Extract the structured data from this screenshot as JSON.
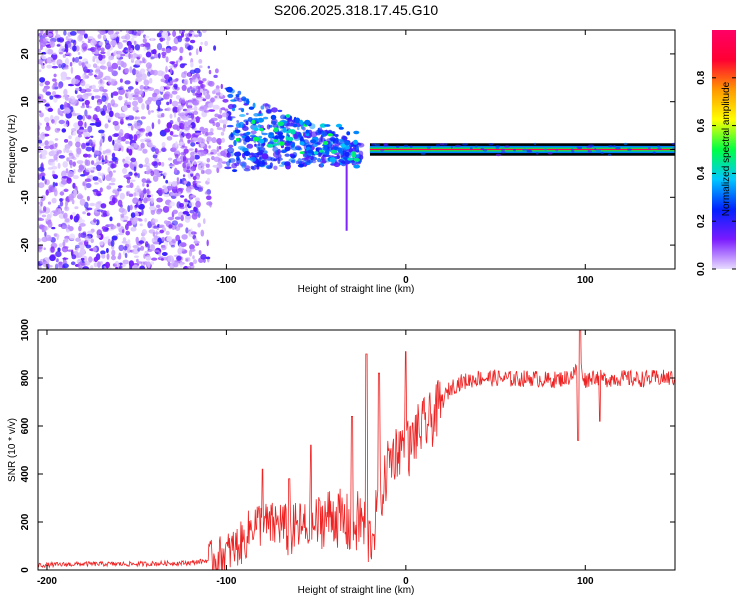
{
  "title": "S206.2025.318.17.45.G10",
  "chart_data": [
    {
      "type": "heatmap",
      "name": "spectrogram",
      "xlabel": "Height of straight line (km)",
      "ylabel": "Frequency (Hz)",
      "xlim": [
        -205,
        150
      ],
      "ylim": [
        -25,
        25
      ],
      "xticks": [
        -200,
        -100,
        0,
        100
      ],
      "yticks": [
        -20,
        -10,
        0,
        10,
        20
      ],
      "colorbar": {
        "label": "Normalized spectral amplitude",
        "range": [
          0,
          1
        ],
        "ticks": [
          "0.0",
          "0.2",
          "0.4",
          "0.6",
          "0.8"
        ],
        "colors": [
          "#e8dcff",
          "#7a1aff",
          "#0022ff",
          "#00c8ff",
          "#00ff44",
          "#ffff00",
          "#ff9900",
          "#ff0033",
          "#ff0066"
        ]
      },
      "features": {
        "noise_region_km": [
          -205,
          -120
        ],
        "transition_region_km": [
          -100,
          -30
        ],
        "carrier_line_hz": 0,
        "carrier_start_km": -20,
        "spike_km": -33,
        "spike_min_hz": -17
      }
    },
    {
      "type": "line",
      "name": "snr",
      "xlabel": "Height of straight line (km)",
      "ylabel": "SNR (10 * v/v)",
      "xlim": [
        -205,
        150
      ],
      "ylim": [
        0,
        1000
      ],
      "xticks": [
        -200,
        -100,
        0,
        100
      ],
      "yticks": [
        0,
        200,
        400,
        600,
        800,
        1000
      ],
      "color": "#ee2222",
      "x": [
        -205,
        -180,
        -150,
        -120,
        -110,
        -100,
        -90,
        -85,
        -80,
        -75,
        -70,
        -65,
        -60,
        -55,
        -50,
        -45,
        -40,
        -35,
        -30,
        -25,
        -20,
        -17,
        -15,
        -12,
        -10,
        -5,
        0,
        2,
        5,
        10,
        15,
        20,
        25,
        30,
        40,
        50,
        60,
        70,
        80,
        90,
        95,
        97,
        100,
        105,
        110,
        120,
        130,
        140,
        150
      ],
      "values": [
        20,
        25,
        25,
        30,
        40,
        70,
        120,
        200,
        190,
        180,
        200,
        150,
        180,
        170,
        190,
        220,
        230,
        200,
        180,
        210,
        120,
        200,
        300,
        350,
        450,
        500,
        540,
        500,
        560,
        600,
        630,
        700,
        760,
        780,
        800,
        800,
        795,
        800,
        790,
        800,
        830,
        850,
        790,
        810,
        795,
        800,
        795,
        800,
        800
      ],
      "peaks": [
        {
          "x": -80,
          "y": 420
        },
        {
          "x": -65,
          "y": 380
        },
        {
          "x": -53,
          "y": 520
        },
        {
          "x": -30,
          "y": 640
        },
        {
          "x": -22,
          "y": 900
        },
        {
          "x": -15,
          "y": 820
        },
        {
          "x": 0,
          "y": 910
        },
        {
          "x": 97,
          "y": 1040
        }
      ],
      "dips": [
        {
          "x": 96,
          "y": 540
        },
        {
          "x": 108,
          "y": 620
        }
      ]
    }
  ]
}
